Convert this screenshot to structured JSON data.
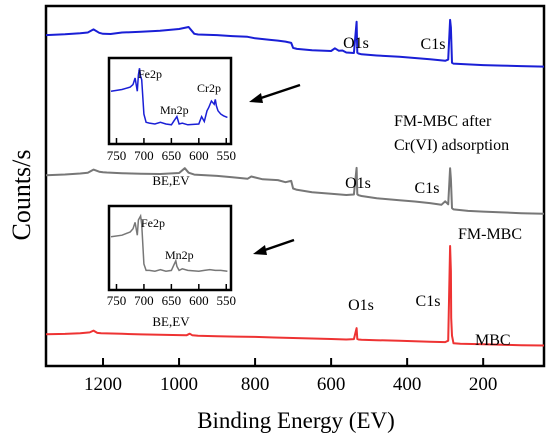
{
  "chart_data": {
    "type": "line",
    "ylabel": "Counts/s",
    "xlabel": "Binding Energy (EV)",
    "x_reversed": true,
    "xlim": [
      1350,
      40
    ],
    "x_ticks": [
      1200,
      1000,
      800,
      600,
      400,
      200
    ],
    "y_ticks_shown": false,
    "series": [
      {
        "name": "MBC",
        "color": "#ee3333",
        "x": [
          1350,
          1300,
          1260,
          1235,
          1225,
          1215,
          1205,
          1190,
          1150,
          1100,
          1050,
          1000,
          980,
          972,
          965,
          950,
          900,
          850,
          800,
          750,
          700,
          650,
          600,
          560,
          540,
          533,
          531,
          528,
          520,
          480,
          420,
          380,
          340,
          300,
          292,
          287,
          285,
          284,
          282,
          278,
          260,
          200,
          150,
          100,
          40
        ],
        "y": [
          25.2,
          25.4,
          25.9,
          26.6,
          28.0,
          26.2,
          25.9,
          25.8,
          25.5,
          25.0,
          24.7,
          24.5,
          24.4,
          25.6,
          24.3,
          24.0,
          23.6,
          23.3,
          23.0,
          22.6,
          22.2,
          21.8,
          21.4,
          21.0,
          21.3,
          30.0,
          21.4,
          21.0,
          20.8,
          20.4,
          20.0,
          19.6,
          19.2,
          18.9,
          20.0,
          95.0,
          75.0,
          38.0,
          24.0,
          18.0,
          17.6,
          17.2,
          16.8,
          16.5,
          16.2
        ]
      },
      {
        "name": "FM-MBC",
        "color": "#777777",
        "x": [
          1350,
          1300,
          1260,
          1240,
          1225,
          1210,
          1200,
          1190,
          1150,
          1100,
          1050,
          1000,
          985,
          975,
          960,
          900,
          860,
          820,
          810,
          780,
          740,
          720,
          705,
          700,
          690,
          650,
          600,
          560,
          540,
          533,
          531,
          528,
          520,
          480,
          420,
          380,
          340,
          310,
          300,
          292,
          287,
          285,
          282,
          278,
          240,
          200,
          150,
          100,
          40
        ],
        "y": [
          151.0,
          151.6,
          152.4,
          153.0,
          155.5,
          153.8,
          153.4,
          153.2,
          152.6,
          152.2,
          152.0,
          152.8,
          156.6,
          153.0,
          151.5,
          150.5,
          149.5,
          148.2,
          150.0,
          147.8,
          147.2,
          145.5,
          146.5,
          140.5,
          139.5,
          137.6,
          136.4,
          135.4,
          135.8,
          156.8,
          136.0,
          135.2,
          134.6,
          132.8,
          131.2,
          130.2,
          129.0,
          127.6,
          130.4,
          128.0,
          156.6,
          148.0,
          125.0,
          124.0,
          122.8,
          122.2,
          121.6,
          121.0,
          120.5
        ]
      },
      {
        "name": "FM-MBC after Cr(VI) adsorption",
        "color": "#1a1fd6",
        "x": [
          1350,
          1300,
          1260,
          1240,
          1225,
          1210,
          1200,
          1180,
          1150,
          1100,
          1050,
          1000,
          975,
          960,
          950,
          900,
          860,
          820,
          800,
          760,
          740,
          720,
          705,
          700,
          690,
          650,
          600,
          590,
          580,
          570,
          560,
          540,
          533,
          531,
          528,
          520,
          480,
          420,
          380,
          340,
          300,
          292,
          287,
          285,
          282,
          278,
          240,
          200,
          150,
          100,
          40
        ],
        "y": [
          262.0,
          262.6,
          263.4,
          264.0,
          266.5,
          263.8,
          263.0,
          262.8,
          264.0,
          264.6,
          265.4,
          266.8,
          268.4,
          263.0,
          262.4,
          262.0,
          261.2,
          260.6,
          259.4,
          258.2,
          257.6,
          256.8,
          255.8,
          251.8,
          251.0,
          250.0,
          249.4,
          251.5,
          249.6,
          249.8,
          248.2,
          247.8,
          272.5,
          248.0,
          247.4,
          246.8,
          245.8,
          244.8,
          243.8,
          242.8,
          241.6,
          242.6,
          274.0,
          268.0,
          240.0,
          239.4,
          238.8,
          238.2,
          237.8,
          237.4,
          237.0
        ]
      }
    ],
    "annotations": {
      "o1s_labels": [
        "O1s",
        "O1s",
        "O1s"
      ],
      "c1s_labels": [
        "C1s",
        "C1s",
        "C1s"
      ],
      "blue_series_text": [
        "FM-MBC after",
        "Cr(VI) adsorption"
      ],
      "gray_series_text": "FM-MBC",
      "red_series_text": "MBC"
    },
    "insets": [
      {
        "name": "inset-top",
        "color": "#1a1fd6",
        "xlabel": "BE,EV",
        "x_ticks": [
          750,
          700,
          650,
          600,
          550
        ],
        "xlim": [
          760,
          545
        ],
        "peak_labels": [
          "Fe2p",
          "Mn2p",
          "Cr2p"
        ],
        "x": [
          760,
          740,
          725,
          720,
          716,
          712,
          710,
          708,
          706,
          704,
          700,
          696,
          690,
          680,
          670,
          660,
          650,
          645,
          640,
          636,
          630,
          620,
          600,
          595,
          590,
          585,
          582,
          577,
          572,
          570,
          568,
          565,
          560,
          555,
          548
        ],
        "y": [
          62,
          64,
          67,
          70,
          78,
          62,
          82,
          90,
          80,
          76,
          34,
          24,
          23,
          22,
          24,
          22,
          21,
          26,
          31,
          22,
          23,
          21,
          22,
          31,
          25,
          38,
          42,
          50,
          46,
          52,
          44,
          38,
          34,
          32,
          30
        ]
      },
      {
        "name": "inset-bottom",
        "color": "#777777",
        "xlabel": "BE,EV",
        "x_ticks": [
          750,
          700,
          650,
          600,
          550
        ],
        "xlim": [
          760,
          545
        ],
        "peak_labels": [
          "Fe2p",
          "Mn2p"
        ],
        "x": [
          760,
          740,
          725,
          720,
          716,
          712,
          710,
          706,
          704,
          700,
          696,
          690,
          680,
          670,
          660,
          650,
          646,
          642,
          640,
          636,
          630,
          620,
          600,
          590,
          580,
          570,
          560,
          548
        ],
        "y": [
          64,
          66,
          70,
          74,
          82,
          66,
          85,
          90,
          80,
          30,
          22,
          22,
          21,
          23,
          21,
          22,
          28,
          34,
          27,
          22,
          24,
          22,
          21,
          22,
          23,
          22,
          22,
          21
        ]
      }
    ]
  }
}
